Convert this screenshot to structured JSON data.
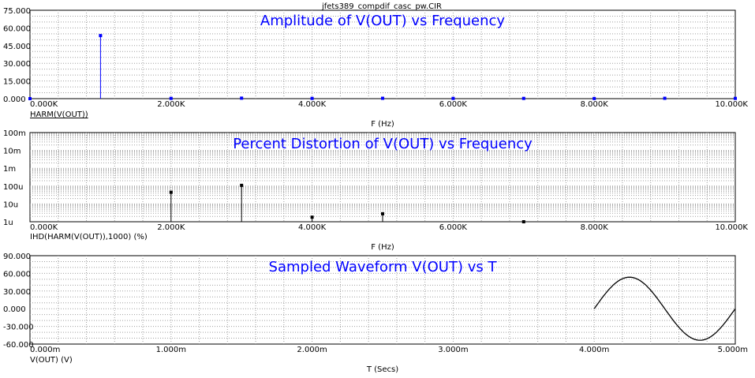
{
  "window": {
    "file_title": "jfets389_compdif_casc_pw.CIR"
  },
  "colors": {
    "blue": "#0000ff",
    "black": "#000000",
    "grid": "#a0a0a0"
  },
  "chart_data": [
    {
      "type": "bar",
      "title": "Amplitude of V(OUT) vs Frequency",
      "trace_label": "HARM(V(OUT))",
      "xlabel": "F (Hz)",
      "ylabel": "",
      "x_ticks": [
        "0.000K",
        "2.000K",
        "4.000K",
        "6.000K",
        "8.000K",
        "10.000K"
      ],
      "y_ticks": [
        "0.000",
        "15.000",
        "30.000",
        "45.000",
        "60.000",
        "75.000"
      ],
      "xlim": [
        0,
        10000
      ],
      "ylim": [
        0,
        75
      ],
      "x": [
        0,
        1000,
        2000,
        3000,
        4000,
        5000,
        6000,
        7000,
        8000,
        9000,
        10000
      ],
      "values": [
        0,
        53.5,
        0.2,
        0.4,
        0.2,
        0.3,
        0.2,
        0.2,
        0.1,
        0.3,
        0.2
      ],
      "color": "#0000ff",
      "grid": true
    },
    {
      "type": "bar",
      "title": "Percent Distortion of V(OUT) vs Frequency",
      "trace_label": "IHD(HARM(V(OUT)),1000) (%)",
      "xlabel": "F (Hz)",
      "ylabel": "",
      "x_ticks": [
        "0.000K",
        "2.000K",
        "4.000K",
        "6.000K",
        "8.000K",
        "10.000K"
      ],
      "y_ticks": [
        "1u",
        "10u",
        "100u",
        "1m",
        "10m",
        "100m"
      ],
      "xlim": [
        0,
        10000
      ],
      "ylim": [
        1e-06,
        0.1
      ],
      "yscale": "log",
      "x": [
        2000,
        3000,
        4000,
        5000,
        7000
      ],
      "values": [
        4.5e-05,
        0.00011,
        1.8e-06,
        2.8e-06,
        1e-06
      ],
      "color": "#000000",
      "grid": true
    },
    {
      "type": "line",
      "title": "Sampled Waveform  V(OUT) vs T",
      "trace_label": "V(OUT) (V)",
      "xlabel": "T (Secs)",
      "ylabel": "",
      "x_ticks": [
        "0.000m",
        "1.000m",
        "2.000m",
        "3.000m",
        "4.000m",
        "5.000m"
      ],
      "y_ticks": [
        "-60.000",
        "-30.000",
        "0.000",
        "30.000",
        "60.000",
        "90.000"
      ],
      "xlim": [
        0,
        0.005
      ],
      "ylim": [
        -60,
        90
      ],
      "signal": {
        "amplitude": 53.5,
        "frequency_hz": 1000,
        "start_s": 0.004,
        "end_s": 0.005,
        "offset": 0
      },
      "color": "#000000",
      "grid": true
    }
  ]
}
